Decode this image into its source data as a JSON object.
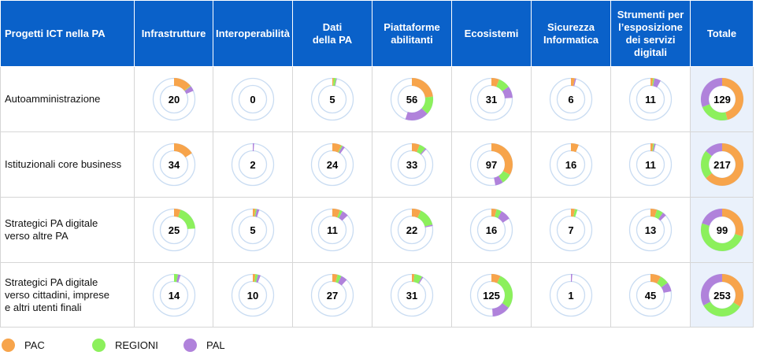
{
  "chart_data": {
    "type": "donut-table",
    "corner_header": "Progetti ICT nella PA",
    "columns": [
      "Infrastrutture",
      "Interoperabilità",
      "Dati\ndella PA",
      "Piattaforme\nabilitanti",
      "Ecosistemi",
      "Sicurezza\nInformatica",
      "Strumenti per\nl’esposizione\ndei servizi\ndigitali",
      "Totale"
    ],
    "rows": [
      {
        "label": "Autoamministrazione",
        "totals": [
          20,
          0,
          5,
          56,
          31,
          6,
          11,
          129
        ],
        "shares": [
          [
            0.14,
            0.005,
            0.04
          ],
          [
            0,
            0,
            0
          ],
          [
            0.01,
            0.02,
            0.005
          ],
          [
            0.23,
            0.14,
            0.18
          ],
          [
            0.06,
            0.09,
            0.09
          ],
          [
            0.03,
            0,
            0.01
          ],
          [
            0.02,
            0.01,
            0.05
          ],
          [
            0.46,
            0.23,
            0.31
          ]
        ]
      },
      {
        "label": "Istituzionali core business",
        "totals": [
          34,
          2,
          24,
          33,
          97,
          16,
          11,
          217
        ],
        "shares": [
          [
            0.16,
            0,
            0
          ],
          [
            0,
            0,
            0.01
          ],
          [
            0.07,
            0.01,
            0.02
          ],
          [
            0.06,
            0.05,
            0.01
          ],
          [
            0.33,
            0.08,
            0.06
          ],
          [
            0.06,
            0,
            0
          ],
          [
            0.02,
            0.01,
            0.01
          ],
          [
            0.64,
            0.22,
            0.14
          ]
        ]
      },
      {
        "label": "Strategici PA digitale\nverso altre PA",
        "totals": [
          25,
          5,
          11,
          22,
          16,
          7,
          13,
          99
        ],
        "shares": [
          [
            0.05,
            0.19,
            0
          ],
          [
            0.02,
            0.01,
            0.02
          ],
          [
            0.06,
            0.02,
            0.05
          ],
          [
            0.07,
            0.14,
            0.01
          ],
          [
            0.04,
            0.04,
            0.08
          ],
          [
            0.03,
            0.02,
            0
          ],
          [
            0.05,
            0.05,
            0.03
          ],
          [
            0.3,
            0.5,
            0.2
          ]
        ]
      },
      {
        "label": "Strategici PA digitale\nverso cittadini, imprese\ne altri utenti finali",
        "totals": [
          14,
          10,
          27,
          31,
          125,
          1,
          45,
          253
        ],
        "shares": [
          [
            0,
            0.03,
            0.02
          ],
          [
            0.02,
            0.02,
            0.02
          ],
          [
            0.04,
            0.03,
            0.05
          ],
          [
            0.02,
            0.06,
            0.01
          ],
          [
            0.07,
            0.28,
            0.14
          ],
          [
            0,
            0,
            0.01
          ],
          [
            0.08,
            0.07,
            0.07
          ],
          [
            0.34,
            0.33,
            0.33
          ]
        ]
      }
    ],
    "legend": [
      {
        "name": "PAC",
        "color": "#f7a44b"
      },
      {
        "name": "REGIONI",
        "color": "#8cf05c"
      },
      {
        "name": "PAL",
        "color": "#b082db"
      }
    ],
    "ring_color": "#c9dcf2",
    "header_color": "#0a61c9"
  }
}
